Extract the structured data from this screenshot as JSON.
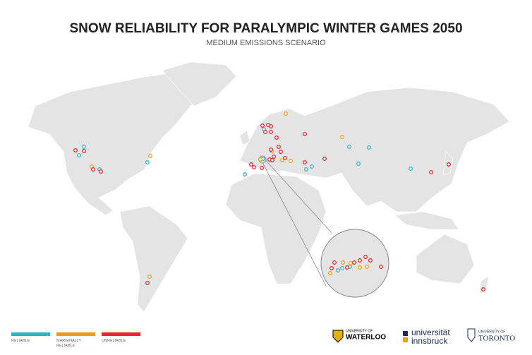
{
  "header": {
    "title": "SNOW RELIABILITY FOR PARALYMPIC WINTER GAMES 2050",
    "subtitle": "MEDIUM EMISSIONS SCENARIO"
  },
  "legend": [
    {
      "name": "RELIABLE",
      "color": "#2bb5c8"
    },
    {
      "name": "MARGINALLY RELIABLE",
      "color": "#f39a1e"
    },
    {
      "name": "UNRELIABLE",
      "color": "#e8262d"
    }
  ],
  "logos": [
    {
      "top": "UNIVERSITY OF",
      "main": "WATERLOO"
    },
    {
      "top": "universität",
      "main": "innsbruck"
    },
    {
      "top": "UNIVERSITY OF",
      "main": "TORONTO"
    }
  ]
}
